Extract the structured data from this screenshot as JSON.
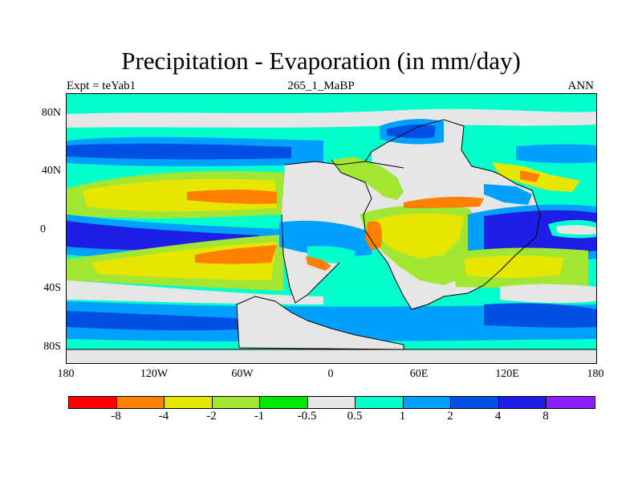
{
  "title": "Precipitation - Evaporation (in mm/day)",
  "subtitle_left": "Expt = teYab1",
  "subtitle_center": "265_1_MaBP",
  "subtitle_right": "ANN",
  "y_axis_ticks": [
    "80N",
    "40N",
    "0",
    "40S",
    "80S"
  ],
  "x_axis_ticks": [
    "180",
    "120W",
    "60W",
    "0",
    "60E",
    "120E",
    "180"
  ],
  "colorbar": {
    "colors": [
      "#ff0000",
      "#ff7f00",
      "#e6e600",
      "#a0e632",
      "#00e600",
      "#e6e6e6",
      "#00ffcc",
      "#00a0ff",
      "#0050e6",
      "#1e1ee6",
      "#8c1eff"
    ],
    "labels": [
      "-8",
      "-4",
      "-2",
      "-1",
      "-0.5",
      "0.5",
      "1",
      "2",
      "4",
      "8"
    ]
  }
}
